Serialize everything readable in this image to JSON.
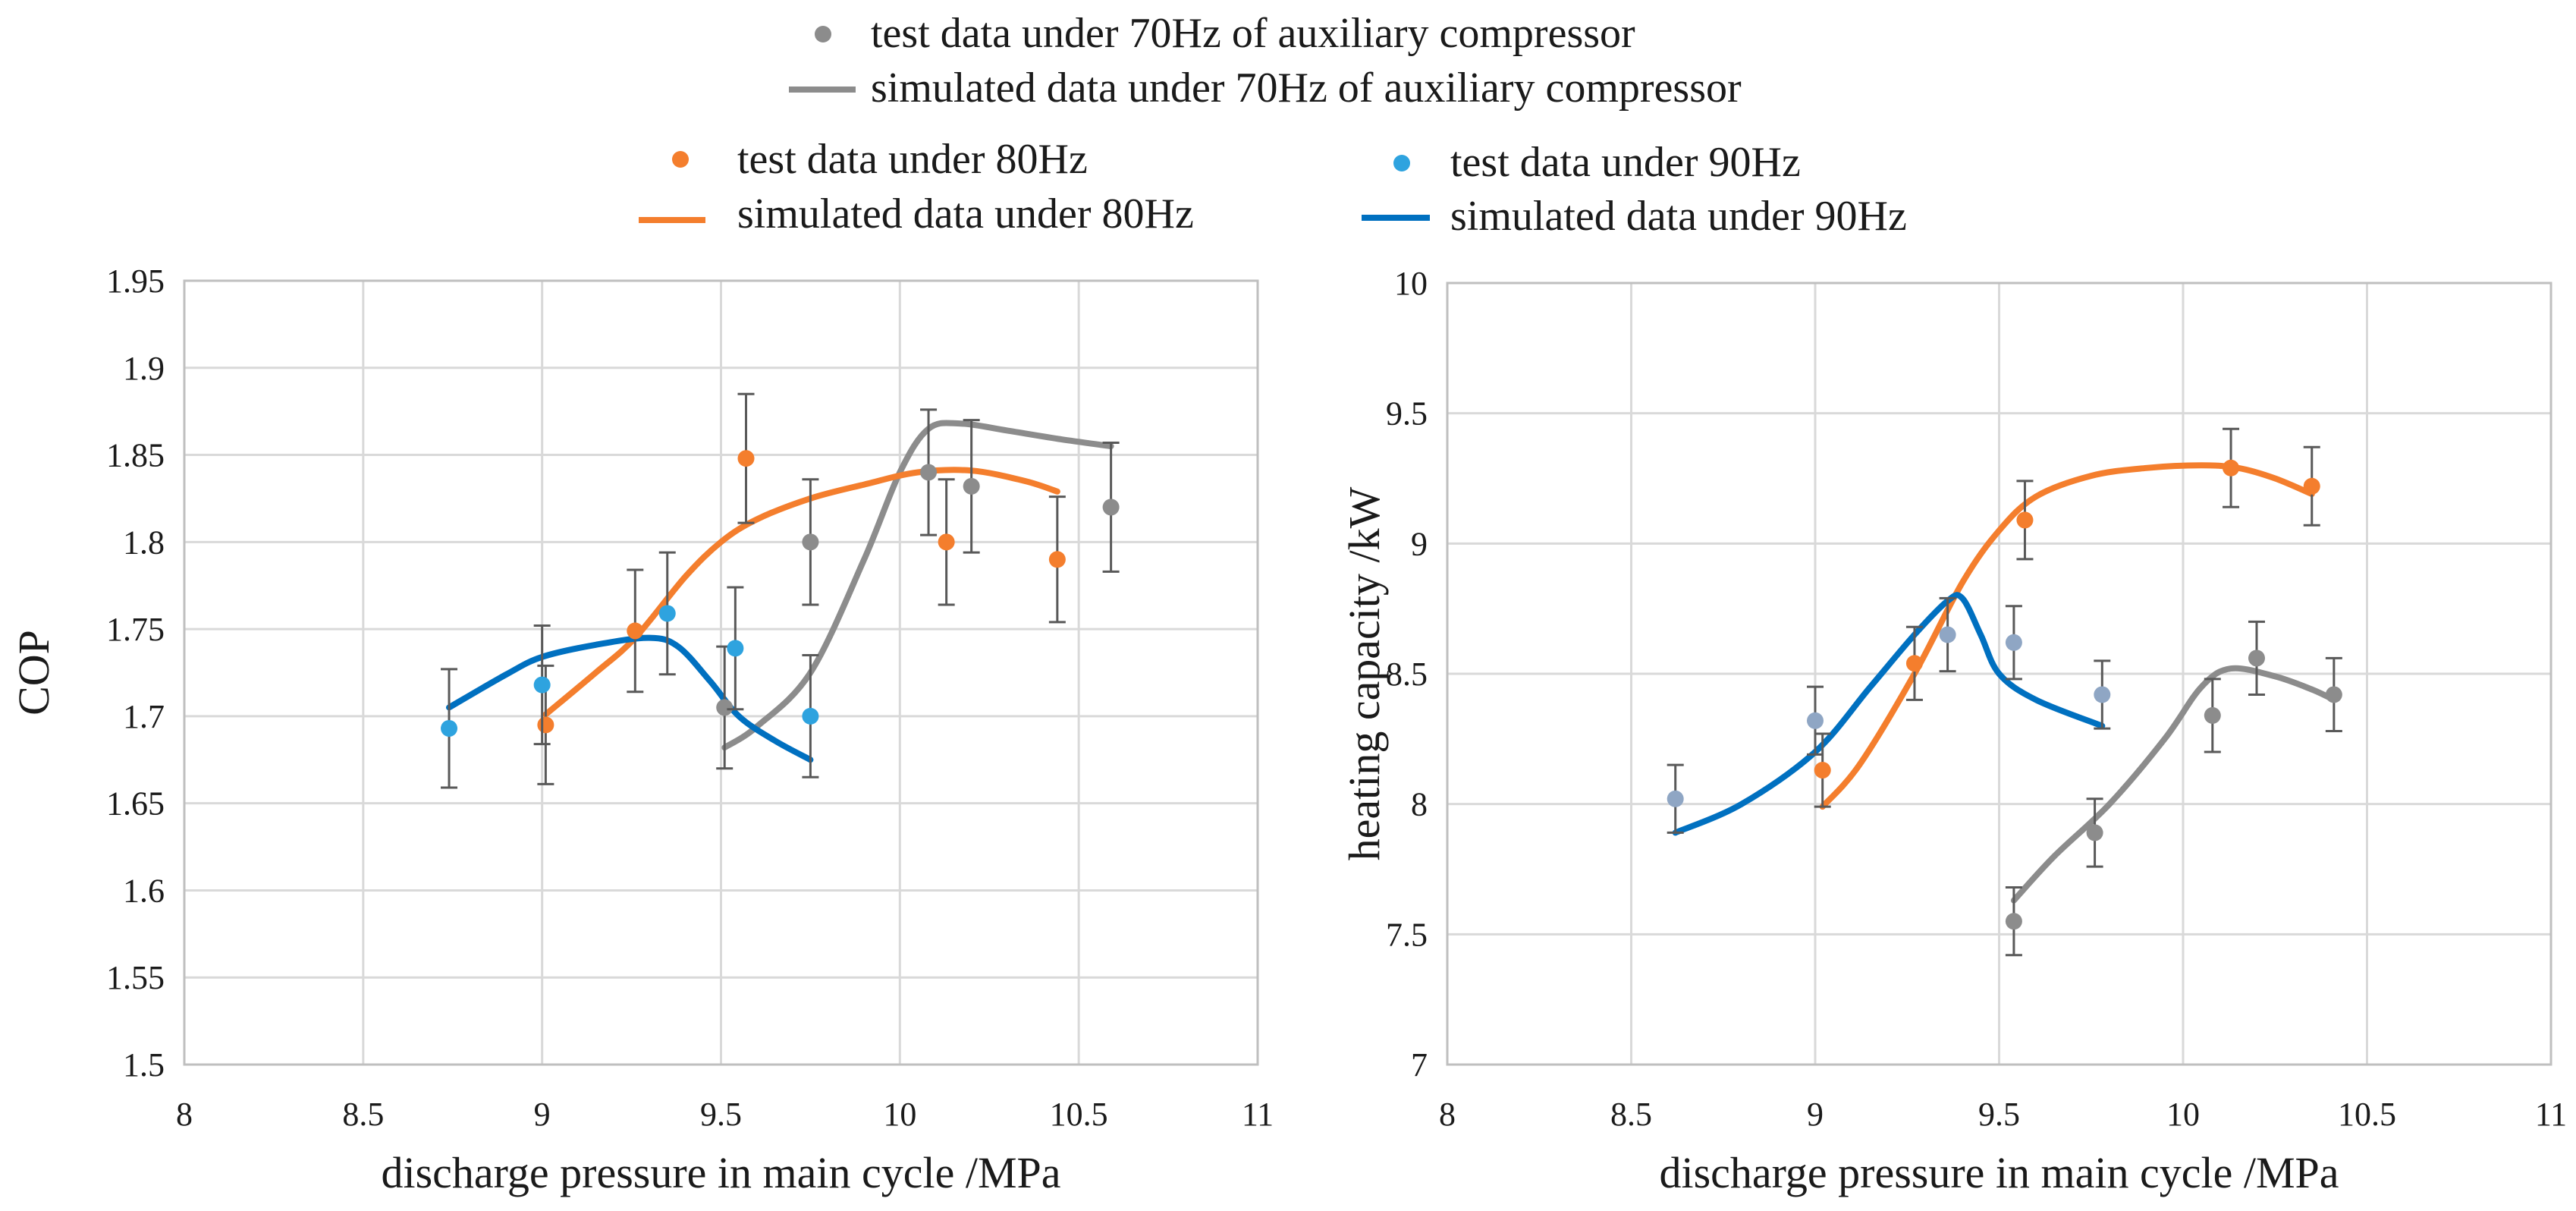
{
  "legend": {
    "test70": "test data under 70Hz of auxiliary compressor",
    "sim70": "simulated data under 70Hz of auxiliary compressor",
    "test80": "test data under 80Hz",
    "sim80": "simulated data under 80Hz",
    "test90": "test data under 90Hz",
    "sim90": "simulated data under 90Hz"
  },
  "colors": {
    "s70": "#8c8c8c",
    "s80": "#f47e2d",
    "s90": "#0070c0",
    "s90_marker": "#2ea3df",
    "s90_marker_right": "#8fa6c4",
    "errorbar": "#595959"
  },
  "chart_data": [
    {
      "id": "cop",
      "type": "scatter",
      "title": "",
      "xlabel": "discharge pressure in main cycle /MPa",
      "ylabel": "COP",
      "xlim": [
        8,
        11
      ],
      "ylim": [
        1.5,
        1.95
      ],
      "xticks": [
        8,
        8.5,
        9,
        9.5,
        10,
        10.5,
        11
      ],
      "xtick_labels": [
        "8",
        "8.5",
        "9",
        "9.5",
        "10",
        "10.5",
        "11"
      ],
      "yticks": [
        1.5,
        1.55,
        1.6,
        1.65,
        1.7,
        1.75,
        1.8,
        1.85,
        1.9,
        1.95
      ],
      "ytick_labels": [
        "1.5",
        "1.55",
        "1.6",
        "1.65",
        "1.7",
        "1.75",
        "1.8",
        "1.85",
        "1.9",
        "1.95"
      ],
      "grid": true,
      "series": [
        {
          "name": "test data under 70Hz of auxiliary compressor",
          "key": "s70",
          "points": [
            [
              9.51,
              1.705
            ],
            [
              9.75,
              1.8
            ],
            [
              10.08,
              1.84
            ],
            [
              10.2,
              1.832
            ],
            [
              10.59,
              1.82
            ]
          ],
          "err": [
            0.035,
            0.036,
            0.036,
            0.038,
            0.037
          ]
        },
        {
          "name": "test data under 80Hz",
          "key": "s80",
          "points": [
            [
              9.01,
              1.695
            ],
            [
              9.26,
              1.749
            ],
            [
              9.57,
              1.848
            ],
            [
              10.13,
              1.8
            ],
            [
              10.44,
              1.79
            ]
          ],
          "err": [
            0.034,
            0.035,
            0.037,
            0.036,
            0.036
          ]
        },
        {
          "name": "test data under 90Hz",
          "key": "s90",
          "points": [
            [
              8.74,
              1.693
            ],
            [
              9.0,
              1.718
            ],
            [
              9.35,
              1.759
            ],
            [
              9.54,
              1.739
            ],
            [
              9.75,
              1.7
            ]
          ],
          "err": [
            0.034,
            0.034,
            0.035,
            0.035,
            0.035
          ]
        }
      ],
      "curves": [
        {
          "name": "simulated data under 70Hz of auxiliary compressor",
          "key": "s70",
          "points": [
            [
              9.51,
              1.682
            ],
            [
              9.6,
              1.694
            ],
            [
              9.75,
              1.725
            ],
            [
              9.9,
              1.79
            ],
            [
              10.0,
              1.84
            ],
            [
              10.08,
              1.865
            ],
            [
              10.17,
              1.868
            ],
            [
              10.3,
              1.864
            ],
            [
              10.45,
              1.859
            ],
            [
              10.59,
              1.855
            ]
          ]
        },
        {
          "name": "simulated data under 80Hz",
          "key": "s80",
          "points": [
            [
              9.01,
              1.701
            ],
            [
              9.15,
              1.725
            ],
            [
              9.26,
              1.745
            ],
            [
              9.4,
              1.78
            ],
            [
              9.5,
              1.8
            ],
            [
              9.6,
              1.813
            ],
            [
              9.75,
              1.825
            ],
            [
              9.9,
              1.833
            ],
            [
              10.05,
              1.84
            ],
            [
              10.2,
              1.841
            ],
            [
              10.35,
              1.835
            ],
            [
              10.44,
              1.829
            ]
          ]
        },
        {
          "name": "simulated data under 90Hz",
          "key": "s90",
          "points": [
            [
              8.74,
              1.705
            ],
            [
              8.9,
              1.724
            ],
            [
              9.0,
              1.734
            ],
            [
              9.15,
              1.741
            ],
            [
              9.3,
              1.745
            ],
            [
              9.38,
              1.74
            ],
            [
              9.47,
              1.72
            ],
            [
              9.55,
              1.7
            ],
            [
              9.65,
              1.686
            ],
            [
              9.75,
              1.675
            ]
          ]
        }
      ]
    },
    {
      "id": "heating",
      "type": "scatter",
      "title": "",
      "xlabel": "discharge pressure in main cycle /MPa",
      "ylabel": "heating capacity /kW",
      "xlim": [
        8,
        11
      ],
      "ylim": [
        7,
        10
      ],
      "xticks": [
        8,
        8.5,
        9,
        9.5,
        10,
        10.5,
        11
      ],
      "xtick_labels": [
        "8",
        "8.5",
        "9",
        "9.5",
        "10",
        "10.5",
        "11"
      ],
      "yticks": [
        7,
        7.5,
        8,
        8.5,
        9,
        9.5,
        10
      ],
      "ytick_labels": [
        "7",
        "7.5",
        "8",
        "8.5",
        "9",
        "9.5",
        "10"
      ],
      "grid": true,
      "series": [
        {
          "name": "test data under 70Hz of auxiliary compressor",
          "key": "s70",
          "points": [
            [
              9.54,
              7.55
            ],
            [
              9.76,
              7.89
            ],
            [
              10.08,
              8.34
            ],
            [
              10.2,
              8.56
            ],
            [
              10.41,
              8.42
            ]
          ],
          "err": [
            0.13,
            0.13,
            0.14,
            0.14,
            0.14
          ]
        },
        {
          "name": "test data under 80Hz",
          "key": "s80",
          "points": [
            [
              9.02,
              8.13
            ],
            [
              9.27,
              8.54
            ],
            [
              9.57,
              9.09
            ],
            [
              10.13,
              9.29
            ],
            [
              10.35,
              9.22
            ]
          ],
          "err": [
            0.14,
            0.14,
            0.15,
            0.15,
            0.15
          ]
        },
        {
          "name": "test data under 90Hz",
          "key": "s90",
          "points": [
            [
              8.62,
              8.02
            ],
            [
              9.0,
              8.32
            ],
            [
              9.36,
              8.65
            ],
            [
              9.54,
              8.62
            ],
            [
              9.78,
              8.42
            ]
          ],
          "err": [
            0.13,
            0.13,
            0.14,
            0.14,
            0.13
          ]
        }
      ],
      "curves": [
        {
          "name": "simulated data under 70Hz of auxiliary compressor",
          "key": "s70",
          "points": [
            [
              9.54,
              7.63
            ],
            [
              9.65,
              7.8
            ],
            [
              9.8,
              8.0
            ],
            [
              9.95,
              8.25
            ],
            [
              10.05,
              8.45
            ],
            [
              10.13,
              8.52
            ],
            [
              10.25,
              8.49
            ],
            [
              10.35,
              8.44
            ],
            [
              10.41,
              8.4
            ]
          ]
        },
        {
          "name": "simulated data under 80Hz",
          "key": "s80",
          "points": [
            [
              9.02,
              7.99
            ],
            [
              9.12,
              8.15
            ],
            [
              9.27,
              8.5
            ],
            [
              9.4,
              8.85
            ],
            [
              9.5,
              9.05
            ],
            [
              9.6,
              9.18
            ],
            [
              9.75,
              9.26
            ],
            [
              9.9,
              9.29
            ],
            [
              10.05,
              9.3
            ],
            [
              10.15,
              9.29
            ],
            [
              10.25,
              9.25
            ],
            [
              10.35,
              9.19
            ]
          ]
        },
        {
          "name": "simulated data under 90Hz",
          "key": "s90",
          "points": [
            [
              8.62,
              7.89
            ],
            [
              8.8,
              8.0
            ],
            [
              9.0,
              8.2
            ],
            [
              9.15,
              8.45
            ],
            [
              9.27,
              8.65
            ],
            [
              9.36,
              8.78
            ],
            [
              9.4,
              8.79
            ],
            [
              9.45,
              8.65
            ],
            [
              9.5,
              8.5
            ],
            [
              9.6,
              8.4
            ],
            [
              9.78,
              8.3
            ]
          ]
        }
      ]
    }
  ]
}
